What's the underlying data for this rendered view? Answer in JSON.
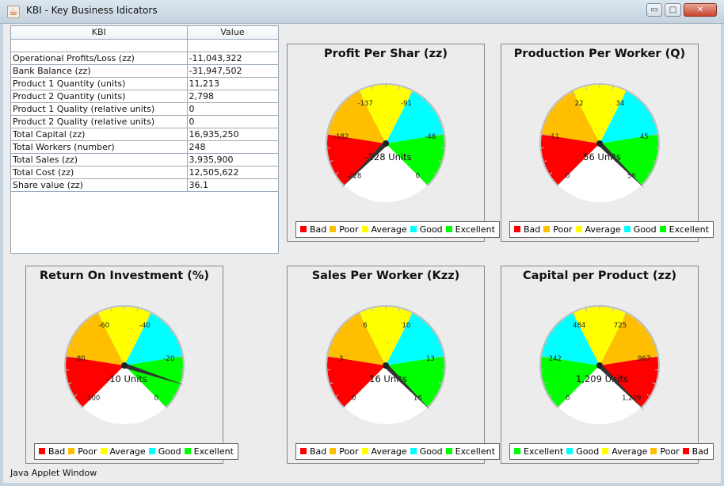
{
  "window": {
    "title": "KBI - Key Business Idicators",
    "status": "Java Applet Window",
    "minimize_symbol": "▭",
    "maximize_symbol": "□",
    "close_symbol": "✕",
    "icon": "java-cup-icon"
  },
  "table": {
    "headers": [
      "KBI",
      "Value"
    ],
    "rows": [
      [
        "Operational Profits/Loss (zz)",
        "-11,043,322"
      ],
      [
        "Bank Balance (zz)",
        "-31,947,502"
      ],
      [
        "Product 1 Quantity (units)",
        "11,213"
      ],
      [
        "Product 2 Quantity (units)",
        "2,798"
      ],
      [
        "Product 1 Quality (relative units)",
        "0"
      ],
      [
        "Product 2 Quality (relative units)",
        "0"
      ],
      [
        "Total Capital (zz)",
        "16,935,250"
      ],
      [
        "Total Workers (number)",
        "248"
      ],
      [
        "Total Sales (zz)",
        "3,935,900"
      ],
      [
        "Total Cost (zz)",
        "12,505,622"
      ],
      [
        "Share value (zz)",
        "36.1"
      ]
    ]
  },
  "colors": {
    "Bad": "#ff0000",
    "Poor": "#ffbf00",
    "Average": "#ffff00",
    "Good": "#00ffff",
    "Excellent": "#00ff00"
  },
  "gauges": [
    {
      "title": "Profit Per Shar (zz)",
      "reading": "-228 Units",
      "value": -228,
      "ticks": [
        "-228",
        "-182",
        "-137",
        "-91",
        "-46",
        "0"
      ],
      "segments": [
        "Bad",
        "Poor",
        "Average",
        "Good",
        "Excellent"
      ],
      "legend": [
        "Bad",
        "Poor",
        "Average",
        "Good",
        "Excellent"
      ]
    },
    {
      "title": "Production Per Worker (Q)",
      "reading": "56 Units",
      "value": 56,
      "ticks": [
        "0",
        "11",
        "22",
        "34",
        "45",
        "56"
      ],
      "segments": [
        "Bad",
        "Poor",
        "Average",
        "Good",
        "Excellent"
      ],
      "legend": [
        "Bad",
        "Poor",
        "Average",
        "Good",
        "Excellent"
      ]
    },
    {
      "title": "Return On Investment (%)",
      "reading": "-10 Units",
      "value": -10,
      "ticks": [
        "-100",
        "-80",
        "-60",
        "-40",
        "-20",
        "0"
      ],
      "segments": [
        "Bad",
        "Poor",
        "Average",
        "Good",
        "Excellent"
      ],
      "legend": [
        "Bad",
        "Poor",
        "Average",
        "Good",
        "Excellent"
      ]
    },
    {
      "title": "Sales Per Worker (Kzz)",
      "reading": "16 Units",
      "value": 16,
      "ticks": [
        "0",
        "3",
        "6",
        "10",
        "13",
        "16"
      ],
      "segments": [
        "Bad",
        "Poor",
        "Average",
        "Good",
        "Excellent"
      ],
      "legend": [
        "Bad",
        "Poor",
        "Average",
        "Good",
        "Excellent"
      ]
    },
    {
      "title": "Capital per Product (zz)",
      "reading": "1,209 Units",
      "value": 1209,
      "ticks": [
        "0",
        "242",
        "484",
        "725",
        "967",
        "1,209"
      ],
      "segments": [
        "Excellent",
        "Good",
        "Average",
        "Poor",
        "Bad"
      ],
      "legend": [
        "Excellent",
        "Good",
        "Average",
        "Poor",
        "Bad"
      ]
    }
  ]
}
